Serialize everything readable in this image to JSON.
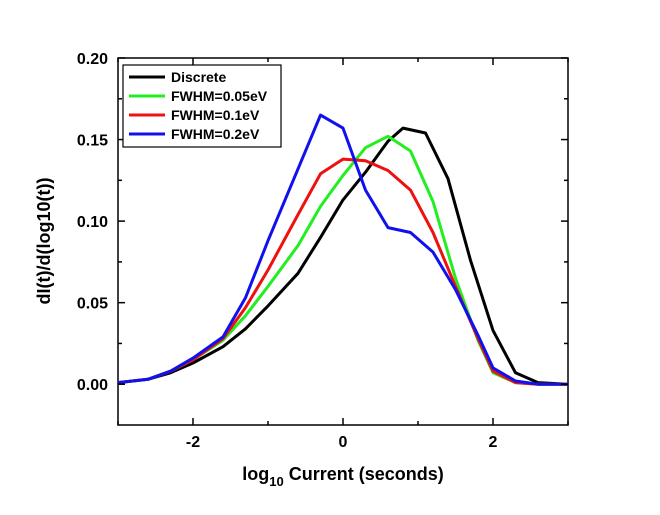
{
  "chart_data": {
    "type": "line",
    "xlabel_main": "log",
    "xlabel_sub": "10",
    "xlabel_rest": " Current (seconds)",
    "ylabel": "dI(t)/d(log10(t))",
    "xlim": [
      -3,
      3
    ],
    "ylim": [
      -0.025,
      0.2
    ],
    "xticks": [
      -2,
      0,
      2
    ],
    "xtick_labels": [
      "-2",
      "0",
      "2"
    ],
    "yticks": [
      0.0,
      0.05,
      0.1,
      0.15,
      0.2
    ],
    "ytick_labels": [
      "0.00",
      "0.05",
      "0.10",
      "0.15",
      "0.20"
    ],
    "grid": false,
    "legend_position": "top-left",
    "series": [
      {
        "name": "Discrete",
        "color": "#000000",
        "x": [
          -3,
          -2.6,
          -2.3,
          -2.0,
          -1.6,
          -1.3,
          -1.0,
          -0.6,
          -0.3,
          0.0,
          0.3,
          0.6,
          0.8,
          1.1,
          1.4,
          1.7,
          2.0,
          2.3,
          2.6,
          3.0
        ],
        "y": [
          0.001,
          0.003,
          0.007,
          0.013,
          0.023,
          0.034,
          0.048,
          0.068,
          0.09,
          0.113,
          0.13,
          0.149,
          0.157,
          0.154,
          0.126,
          0.076,
          0.033,
          0.007,
          0.001,
          0.0
        ]
      },
      {
        "name": "FWHM=0.05eV",
        "color": "#22ee22",
        "x": [
          -3,
          -2.6,
          -2.3,
          -2.0,
          -1.6,
          -1.3,
          -1.0,
          -0.6,
          -0.3,
          0.0,
          0.3,
          0.6,
          0.9,
          1.2,
          1.5,
          1.8,
          2.0,
          2.3,
          2.6,
          3.0
        ],
        "y": [
          0.001,
          0.003,
          0.008,
          0.015,
          0.027,
          0.042,
          0.06,
          0.085,
          0.109,
          0.128,
          0.145,
          0.152,
          0.143,
          0.112,
          0.065,
          0.027,
          0.007,
          0.001,
          0.0,
          0.0
        ]
      },
      {
        "name": "FWHM=0.1eV",
        "color": "#ee1111",
        "x": [
          -3,
          -2.6,
          -2.3,
          -2.0,
          -1.6,
          -1.3,
          -1.0,
          -0.6,
          -0.3,
          0.0,
          0.3,
          0.6,
          0.9,
          1.2,
          1.5,
          1.8,
          2.0,
          2.3,
          2.6,
          3.0
        ],
        "y": [
          0.001,
          0.003,
          0.008,
          0.015,
          0.028,
          0.047,
          0.07,
          0.104,
          0.129,
          0.138,
          0.137,
          0.131,
          0.119,
          0.093,
          0.06,
          0.028,
          0.008,
          0.001,
          0.0,
          0.0
        ]
      },
      {
        "name": "FWHM=0.2eV",
        "color": "#1111ee",
        "x": [
          -3,
          -2.6,
          -2.3,
          -2.0,
          -1.6,
          -1.3,
          -1.0,
          -0.6,
          -0.3,
          0.0,
          0.3,
          0.6,
          0.9,
          1.2,
          1.5,
          1.8,
          2.0,
          2.3,
          2.6,
          3.0
        ],
        "y": [
          0.001,
          0.003,
          0.008,
          0.016,
          0.029,
          0.053,
          0.088,
          0.132,
          0.165,
          0.157,
          0.119,
          0.096,
          0.093,
          0.081,
          0.058,
          0.03,
          0.01,
          0.002,
          0.0,
          0.0
        ]
      }
    ]
  }
}
